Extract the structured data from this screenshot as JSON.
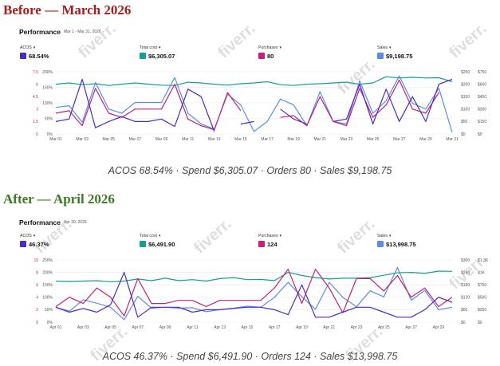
{
  "before": {
    "heading": "Before — March 2026",
    "title": "Performance",
    "date_range": "Mar 1 - Mar 31, 2026",
    "metrics": [
      {
        "label": "ACOS",
        "value": "68.54%",
        "color": "#4a2cc8"
      },
      {
        "label": "Total cost",
        "value": "$6,305.07",
        "color": "#12a092"
      },
      {
        "label": "Purchases",
        "value": "80",
        "color": "#c2227a"
      },
      {
        "label": "Sales",
        "value": "$9,198.75",
        "color": "#5d8ce8"
      }
    ],
    "summary": "ACOS 68.54%  ·  Spend $6,305.07  ·  Orders 80  ·  Sales $9,198.75"
  },
  "after": {
    "heading": "After — April 2026",
    "title": "Performance",
    "date_range": "Apr 30, 2026",
    "metrics": [
      {
        "label": "ACOS",
        "value": "46.37%",
        "color": "#4a2cc8"
      },
      {
        "label": "Total cost",
        "value": "$6,491.90",
        "color": "#12a092"
      },
      {
        "label": "Purchases",
        "value": "124",
        "color": "#c2227a"
      },
      {
        "label": "Sales",
        "value": "$13,998.75",
        "color": "#5d8ce8"
      }
    ],
    "summary": "ACOS 46.37%  ·  Spend $6,491.90  ·  Orders 124  ·  Sales $13,998.75"
  },
  "watermark": "fiverr.",
  "chart_data": [
    {
      "type": "line",
      "x": [
        "Mar 01",
        "Mar 02",
        "Mar 03",
        "Mar 04",
        "Mar 05",
        "Mar 06",
        "Mar 07",
        "Mar 08",
        "Mar 09",
        "Mar 10",
        "Mar 11",
        "Mar 12",
        "Mar 13",
        "Mar 14",
        "Mar 15",
        "Mar 16",
        "Mar 17",
        "Mar 18",
        "Mar 19",
        "Mar 20",
        "Mar 21",
        "Mar 22",
        "Mar 23",
        "Mar 24",
        "Mar 25",
        "Mar 26",
        "Mar 27",
        "Mar 28",
        "Mar 29",
        "Mar 30",
        "Mar 31"
      ],
      "x_ticks": [
        "Mar 01",
        "Mar 03",
        "Mar 05",
        "Mar 07",
        "Mar 09",
        "Mar 11",
        "Mar 13",
        "Mar 15",
        "Mar 17",
        "Mar 19",
        "Mar 21",
        "Mar 23",
        "Mar 25",
        "Mar 27",
        "Mar 29",
        "Mar 31"
      ],
      "axis_purchases": {
        "ticks": [
          "0",
          "1.5",
          "3",
          "4.5",
          "6",
          "7.5"
        ],
        "range": [
          0,
          7.5
        ],
        "color": "#c2227a"
      },
      "axis_acos": {
        "ticks": [
          "0%",
          "50%",
          "100%",
          "150%",
          "200%"
        ],
        "range": [
          0,
          250
        ]
      },
      "axis_cost": {
        "ticks": [
          "$0",
          "$50",
          "$100",
          "$150",
          "$200",
          "$250"
        ],
        "range": [
          0,
          250
        ]
      },
      "axis_sales": {
        "ticks": [
          "$0",
          "$150",
          "$300",
          "$450",
          "$600",
          "$750"
        ],
        "range": [
          0,
          750
        ]
      },
      "series": [
        {
          "name": "Total cost",
          "axis": "cost",
          "color": "#12a092",
          "values": [
            200,
            205,
            198,
            202,
            195,
            200,
            205,
            200,
            196,
            195,
            208,
            205,
            200,
            196,
            202,
            205,
            210,
            198,
            195,
            200,
            202,
            205,
            208,
            200,
            205,
            230,
            225,
            228,
            225,
            226,
            210
          ]
        },
        {
          "name": "Sales",
          "axis": "sales",
          "color": "#5d8ce8",
          "values": [
            320,
            340,
            140,
            620,
            300,
            250,
            380,
            380,
            380,
            680,
            250,
            120,
            60,
            480,
            350,
            30,
            150,
            420,
            350,
            100,
            510,
            150,
            120,
            640,
            250,
            400,
            700,
            370,
            300,
            550,
            20
          ]
        },
        {
          "name": "Purchases",
          "axis": "purchases",
          "color": "#c2227a",
          "values": [
            2.5,
            2.8,
            1,
            5.5,
            2.5,
            2,
            3,
            3,
            3,
            6,
            1.8,
            1,
            0.5,
            5,
            2.8,
            null,
            null,
            2,
            2.2,
            1,
            4.5,
            1.5,
            1,
            5.5,
            2,
            3.5,
            6.5,
            3,
            2.5,
            5,
            null
          ]
        },
        {
          "name": "ACOS",
          "axis": "acos",
          "color": "#4a2cc8",
          "values": [
            50,
            60,
            220,
            25,
            50,
            70,
            50,
            50,
            60,
            30,
            180,
            150,
            10,
            null,
            40,
            50,
            null,
            100,
            60,
            40,
            null,
            50,
            60,
            200,
            40,
            180,
            50,
            150,
            50,
            200,
            220
          ]
        }
      ]
    },
    {
      "type": "line",
      "x": [
        "Apr 01",
        "Apr 02",
        "Apr 03",
        "Apr 04",
        "Apr 05",
        "Apr 06",
        "Apr 07",
        "Apr 08",
        "Apr 09",
        "Apr 10",
        "Apr 11",
        "Apr 12",
        "Apr 13",
        "Apr 14",
        "Apr 15",
        "Apr 16",
        "Apr 17",
        "Apr 18",
        "Apr 19",
        "Apr 20",
        "Apr 21",
        "Apr 22",
        "Apr 23",
        "Apr 24",
        "Apr 25",
        "Apr 26",
        "Apr 27",
        "Apr 28",
        "Apr 29",
        "Apr 30"
      ],
      "x_ticks": [
        "Apr 01",
        "Apr 03",
        "Apr 05",
        "Apr 07",
        "Apr 09",
        "Apr 11",
        "Apr 13",
        "Apr 15",
        "Apr 17",
        "Apr 19",
        "Apr 21",
        "Apr 23",
        "Apr 25",
        "Apr 27",
        "Apr 29"
      ],
      "axis_purchases": {
        "ticks": [
          "0",
          "2",
          "4",
          "6",
          "8",
          "10"
        ],
        "range": [
          0,
          10
        ],
        "color": "#c2227a"
      },
      "axis_acos": {
        "ticks": [
          "0%",
          "50%",
          "100%",
          "150%",
          "200%",
          "250%"
        ],
        "range": [
          0,
          250
        ]
      },
      "axis_cost": {
        "ticks": [
          "$0",
          "$60",
          "$120",
          "$180",
          "$240",
          "$300"
        ],
        "range": [
          0,
          300
        ]
      },
      "axis_sales": {
        "ticks": [
          "$0",
          "$250",
          "$500",
          "$750",
          "$1K",
          "$1.3K"
        ],
        "range": [
          0,
          1250
        ]
      },
      "series": [
        {
          "name": "Total cost",
          "axis": "cost",
          "color": "#12a092",
          "values": [
            198,
            196,
            198,
            200,
            195,
            198,
            208,
            200,
            212,
            200,
            205,
            198,
            210,
            215,
            205,
            206,
            200,
            240,
            225,
            215,
            208,
            212,
            212,
            215,
            226,
            238,
            240,
            235,
            246,
            245
          ]
        },
        {
          "name": "Sales",
          "axis": "sales",
          "color": "#5d8ce8",
          "values": [
            300,
            220,
            450,
            380,
            300,
            50,
            520,
            280,
            300,
            280,
            290,
            210,
            250,
            280,
            320,
            300,
            500,
            800,
            510,
            260,
            800,
            500,
            310,
            630,
            510,
            1100,
            440,
            640,
            250,
            300
          ]
        },
        {
          "name": "Purchases",
          "axis": "purchases",
          "color": "#c2227a",
          "values": [
            2.5,
            4,
            3,
            5.5,
            4,
            1,
            7,
            3,
            3,
            3.5,
            3.5,
            2.5,
            3.5,
            3.5,
            3.5,
            3.5,
            5.5,
            8.5,
            3,
            8.5,
            5.5,
            1.5,
            7,
            7,
            5,
            7.5,
            4,
            5.5,
            2.5,
            4
          ]
        },
        {
          "name": "ACOS",
          "axis": "acos",
          "color": "#4a2cc8",
          "values": [
            60,
            40,
            55,
            40,
            70,
            200,
            20,
            60,
            60,
            60,
            40,
            50,
            50,
            55,
            60,
            60,
            50,
            30,
            150,
            20,
            20,
            40,
            60,
            60,
            40,
            20,
            20,
            50,
            100,
            80
          ]
        }
      ]
    }
  ]
}
